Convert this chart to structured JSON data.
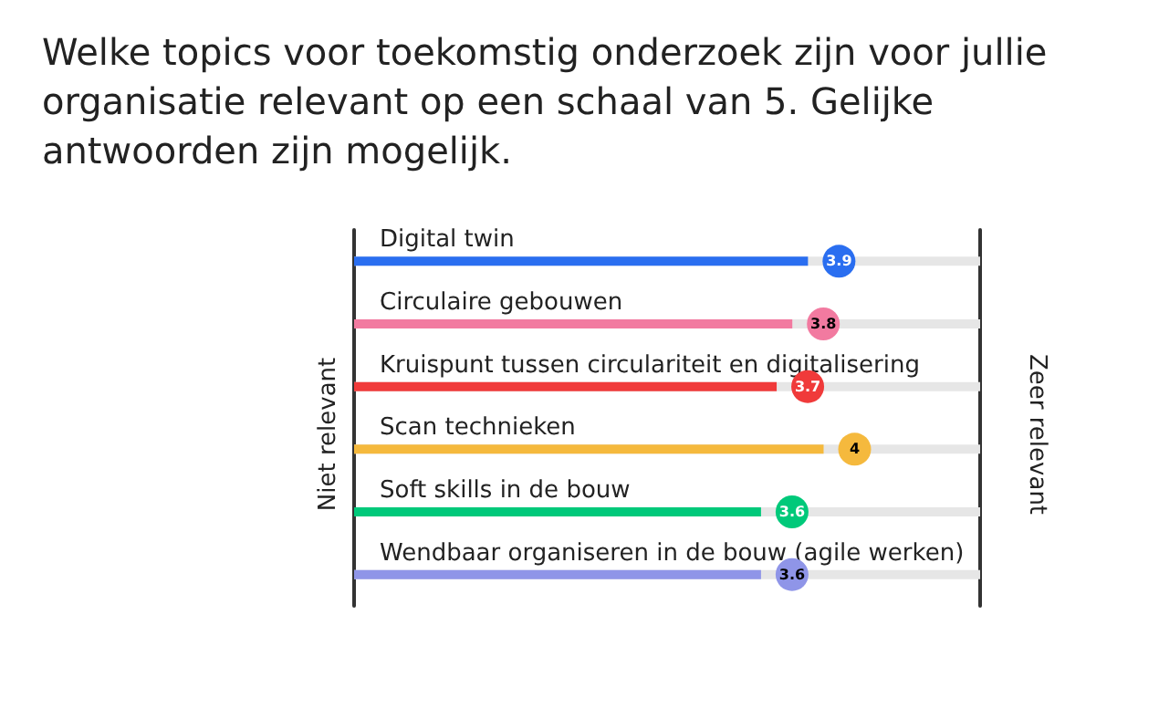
{
  "chart_data": {
    "type": "bar",
    "orientation": "horizontal",
    "title": "Welke topics voor toekomstig onderzoek zijn voor jullie organisatie relevant op een schaal van 5. Gelijke antwoorden zijn mogelijk.",
    "categories": [
      "Digital twin",
      "Circulaire gebouwen",
      "Kruispunt tussen circulariteit en digitalisering",
      "Scan technieken",
      "Soft skills in de bouw",
      "Wendbaar organiseren in de bouw (agile werken)"
    ],
    "values": [
      3.9,
      3.8,
      3.7,
      4,
      3.6,
      3.6
    ],
    "colors": [
      "#2a6ef0",
      "#f27aa0",
      "#f03a3a",
      "#f5b93d",
      "#00c97a",
      "#8f95e8"
    ],
    "xlim": [
      1,
      5
    ],
    "tick_labels": false,
    "data_labels": true,
    "annotations": [
      "Niet relevant",
      "Zeer relevant"
    ]
  }
}
